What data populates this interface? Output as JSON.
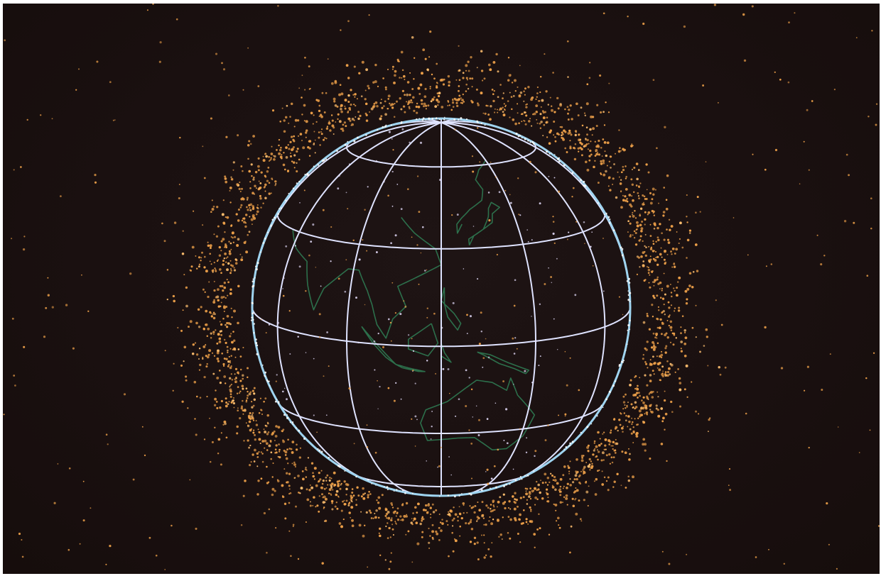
{
  "image": {
    "subject": "space-debris-around-earth",
    "colors": {
      "background": "#1b1110",
      "debris": "#f0a24a",
      "debris_bright": "#ffc070",
      "grid": "#dfe3ff",
      "coastline": "#2f7a52",
      "limb": "#9fd4f0"
    },
    "icon": "globe-icon"
  }
}
